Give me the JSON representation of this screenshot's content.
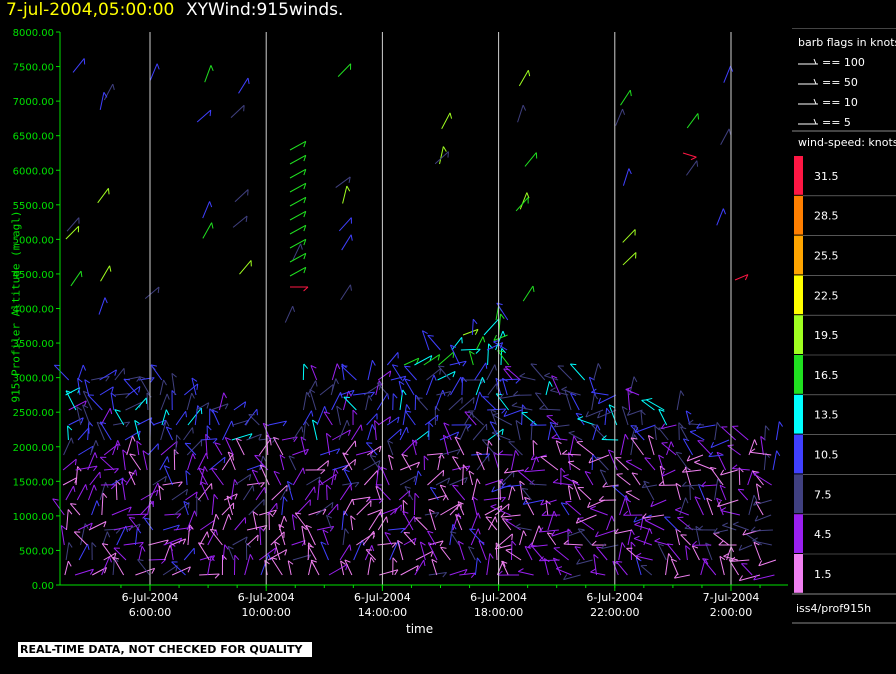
{
  "header": {
    "date_time": "7-jul-2004,05:00:00",
    "product": "XYWind:915winds."
  },
  "chart_data": {
    "type": "scatter",
    "title": "XYWind:915winds.",
    "xlabel": "time",
    "ylabel": "915 Profiler Altitude (m agl)",
    "ylim": [
      0,
      8000
    ],
    "y_ticks": [
      "0.00",
      "500.00",
      "1000.00",
      "1500.00",
      "2000.00",
      "2500.00",
      "3000.00",
      "3500.00",
      "4000.00",
      "4500.00",
      "5000.00",
      "5500.00",
      "6000.00",
      "6500.00",
      "7000.00",
      "7500.00",
      "8000.00"
    ],
    "x_ticks": [
      {
        "date": "6-Jul-2004",
        "time": "6:00:00"
      },
      {
        "date": "6-Jul-2004",
        "time": "10:00:00"
      },
      {
        "date": "6-Jul-2004",
        "time": "14:00:00"
      },
      {
        "date": "6-Jul-2004",
        "time": "18:00:00"
      },
      {
        "date": "6-Jul-2004",
        "time": "22:00:00"
      },
      {
        "date": "7-Jul-2004",
        "time": "2:00:00"
      }
    ],
    "xlim_hours": [
      5.0,
      29.0
    ],
    "grid": "vertical lines at labeled times",
    "legend_placement": "right"
  },
  "legend": {
    "barb_title": "barb flags in knots",
    "barbs": [
      "== 100",
      "== 50",
      "== 10",
      "== 5"
    ],
    "speed_title": "wind-speed: knots",
    "speed_bins": [
      {
        "label": "31.5",
        "color": "#ff1744"
      },
      {
        "label": "28.5",
        "color": "#ff7f00"
      },
      {
        "label": "25.5",
        "color": "#ffa500"
      },
      {
        "label": "22.5",
        "color": "#ffff00"
      },
      {
        "label": "19.5",
        "color": "#a0ff20"
      },
      {
        "label": "16.5",
        "color": "#20e020"
      },
      {
        "label": "13.5",
        "color": "#00ffff"
      },
      {
        "label": "10.5",
        "color": "#4040ff"
      },
      {
        "label": "7.5",
        "color": "#404080"
      },
      {
        "label": "4.5",
        "color": "#9a20f0"
      },
      {
        "label": "1.5",
        "color": "#f080f0"
      }
    ]
  },
  "station": "iss4/prof915h",
  "disclaimer": "REAL-TIME DATA, NOT CHECKED FOR QUALITY",
  "colors": {
    "axis": "#00e000",
    "grid": "#d0d0d0",
    "background": "#000000"
  }
}
